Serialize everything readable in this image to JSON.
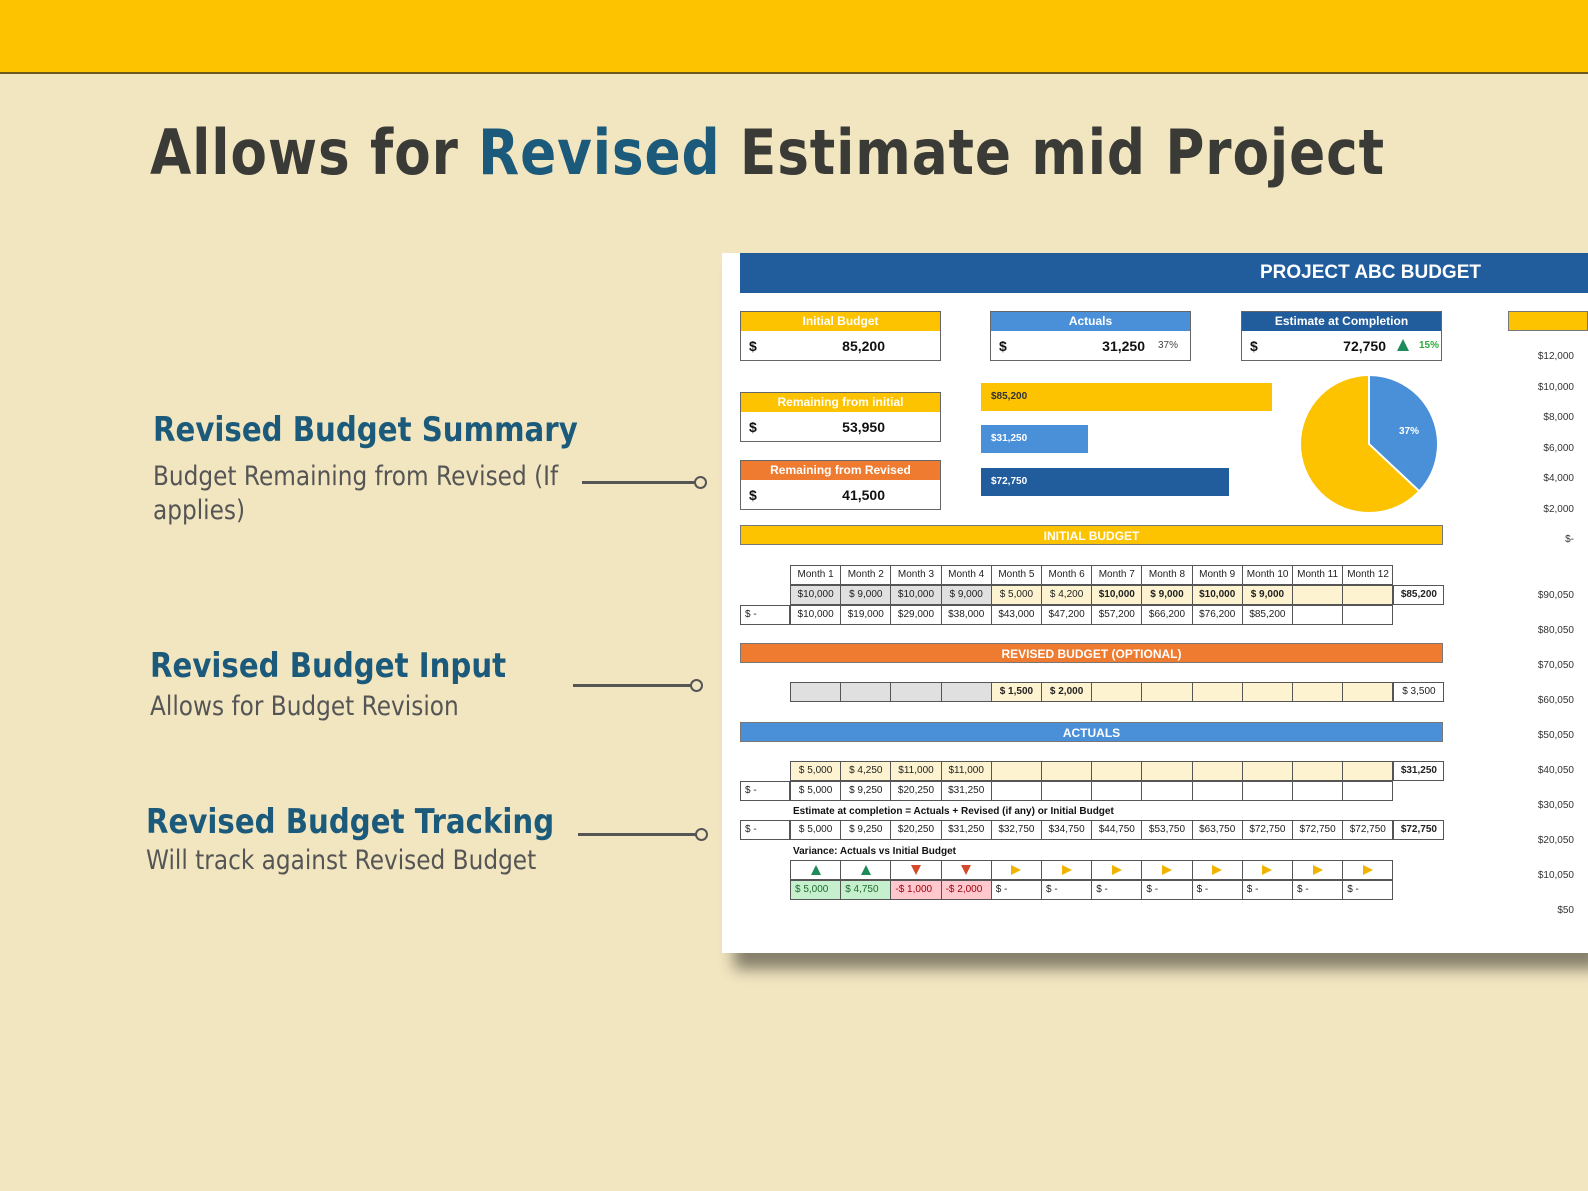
{
  "title": {
    "part1": "Allows for ",
    "highlight": "Revised",
    "part2": " Estimate mid Project"
  },
  "callouts": [
    {
      "heading": "Revised Budget Summary",
      "desc1": "Budget Remaining from Revised (If",
      "desc2": "applies)"
    },
    {
      "heading": "Revised Budget Input",
      "desc1": "Allows for Budget Revision"
    },
    {
      "heading": "Revised Budget Tracking",
      "desc1": "Will track against Revised Budget"
    }
  ],
  "sheet": {
    "header": "PROJECT ABC BUDGET",
    "kpis": {
      "initial": {
        "label": "Initial Budget",
        "currency": "$",
        "value": "85,200"
      },
      "actuals": {
        "label": "Actuals",
        "currency": "$",
        "value": "31,250",
        "pct": "37%"
      },
      "eac": {
        "label": "Estimate at Completion",
        "currency": "$",
        "value": "72,750",
        "pct": "15%"
      },
      "rem_initial": {
        "label": "Remaining from initial",
        "currency": "$",
        "value": "53,950"
      },
      "rem_revised": {
        "label": "Remaining from Revised",
        "currency": "$",
        "value": "41,500"
      }
    },
    "bars": [
      {
        "label": "$85,200",
        "value": 85200,
        "color": "#fdc300"
      },
      {
        "label": "$31,250",
        "value": 31250,
        "color": "#4a90d9"
      },
      {
        "label": "$72,750",
        "value": 72750,
        "color": "#215d9c"
      }
    ],
    "pie": {
      "actual_pct": 37,
      "label": "37%"
    },
    "sections": {
      "initial": "INITIAL BUDGET",
      "revised": "REVISED BUDGET (OPTIONAL)",
      "actuals": "ACTUALS"
    },
    "months": [
      "Month 1",
      "Month 2",
      "Month 3",
      "Month 4",
      "Month 5",
      "Month 6",
      "Month 7",
      "Month 8",
      "Month 9",
      "Month 10",
      "Month 11",
      "Month 12"
    ],
    "initial_row": [
      "$10,000",
      "$  9,000",
      "$10,000",
      "$  9,000",
      "$  5,000",
      "$  4,200",
      "$10,000",
      "$  9,000",
      "$10,000",
      "$  9,000",
      "",
      ""
    ],
    "initial_total": "$85,200",
    "initial_cum_start": "$      -",
    "initial_cum": [
      "$10,000",
      "$19,000",
      "$29,000",
      "$38,000",
      "$43,000",
      "$47,200",
      "$57,200",
      "$66,200",
      "$76,200",
      "$85,200",
      "",
      ""
    ],
    "revised_row": [
      "",
      "",
      "",
      "",
      "$  1,500",
      "$  2,000",
      "",
      "",
      "",
      "",
      "",
      ""
    ],
    "revised_total": "$  3,500",
    "actuals_row": [
      "$  5,000",
      "$  4,250",
      "$11,000",
      "$11,000",
      "",
      "",
      "",
      "",
      "",
      "",
      "",
      ""
    ],
    "actuals_total": "$31,250",
    "actuals_cum_start": "$      -",
    "actuals_cum": [
      "$  5,000",
      "$  9,250",
      "$20,250",
      "$31,250",
      "",
      "",
      "",
      "",
      "",
      "",
      "",
      ""
    ],
    "eac_note": "Estimate at completion = Actuals + Revised (if any) or Initial Budget",
    "eac_start": "$      -",
    "eac_row": [
      "$  5,000",
      "$  9,250",
      "$20,250",
      "$31,250",
      "$32,750",
      "$34,750",
      "$44,750",
      "$53,750",
      "$63,750",
      "$72,750",
      "$72,750",
      "$72,750"
    ],
    "eac_total": "$72,750",
    "variance_note": "Variance: Actuals vs Initial Budget",
    "variance_icons": [
      "up",
      "up",
      "down",
      "down",
      "right",
      "right",
      "right",
      "right",
      "right",
      "right",
      "right",
      "right"
    ],
    "variance_row": [
      "$  5,000",
      "$  4,750",
      "-$  1,000",
      "-$  2,000",
      "$      -",
      "$      -",
      "$      -",
      "$      -",
      "$      -",
      "$      -",
      "$      -",
      "$      -"
    ],
    "variance_colors": [
      "#c6efce",
      "#c6efce",
      "#ffc7ce",
      "#ffc7ce",
      "",
      "",
      "",
      "",
      "",
      "",
      "",
      ""
    ],
    "axis_top": [
      "$12,000",
      "$10,000",
      "$8,000",
      "$6,000",
      "$4,000",
      "$2,000",
      "$-"
    ],
    "axis_bottom": [
      "$90,050",
      "$80,050",
      "$70,050",
      "$60,050",
      "$50,050",
      "$40,050",
      "$30,050",
      "$20,050",
      "$10,050",
      "$50"
    ]
  }
}
